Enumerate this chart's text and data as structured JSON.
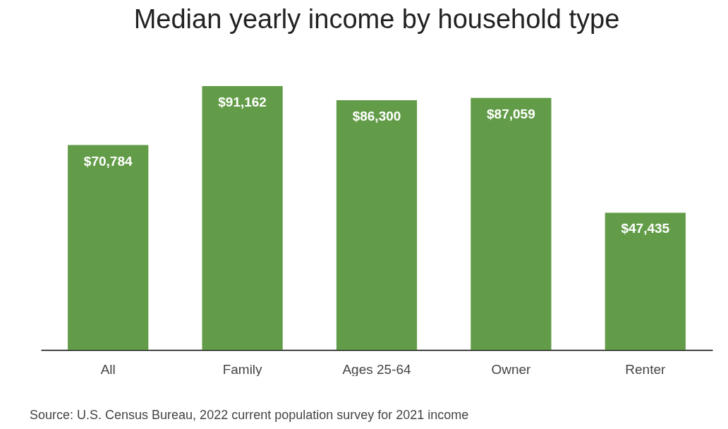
{
  "chart_data": {
    "type": "bar",
    "title": "Median yearly income by household type",
    "categories": [
      "All",
      "Family",
      "Ages 25-64",
      "Owner",
      "Renter"
    ],
    "values": [
      70784,
      91162,
      86300,
      87059,
      47435
    ],
    "value_labels": [
      "$70,784",
      "$91,162",
      "$86,300",
      "$87,059",
      "$47,435"
    ],
    "color": "#629c48",
    "annotations": [
      "Source: U.S. Census Bureau, 2022 current population survey for 2021 income"
    ]
  }
}
